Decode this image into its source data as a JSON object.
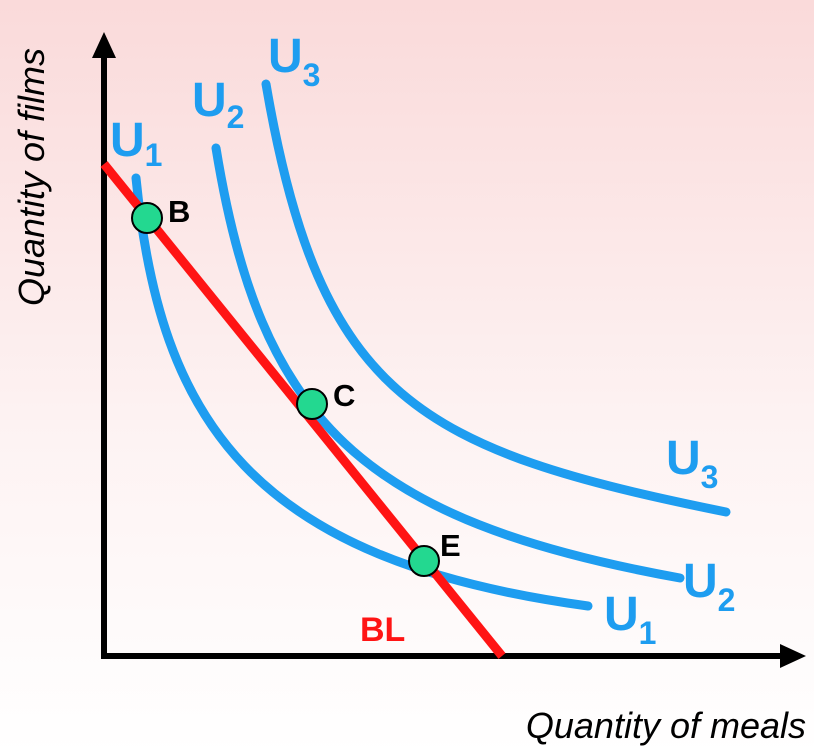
{
  "axes": {
    "x_title": "Quantity of meals",
    "y_title": "Quantity of films"
  },
  "colors": {
    "curve": "#1e9df0",
    "budget_line": "#ff1414",
    "point_fill": "#23d890",
    "axis": "#000000",
    "label_black": "#000000"
  },
  "curves": [
    {
      "id": "u1",
      "base": "U",
      "sub": "1"
    },
    {
      "id": "u2",
      "base": "U",
      "sub": "2"
    },
    {
      "id": "u3",
      "base": "U",
      "sub": "3"
    }
  ],
  "budget_line": {
    "label": "BL"
  },
  "points": [
    {
      "id": "b",
      "label": "B"
    },
    {
      "id": "c",
      "label": "C"
    },
    {
      "id": "e",
      "label": "E"
    }
  ]
}
